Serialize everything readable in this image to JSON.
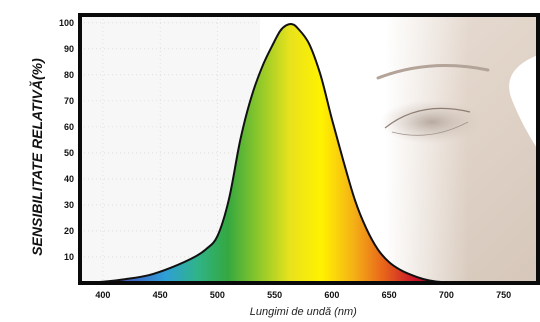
{
  "chart_data": {
    "type": "area",
    "title": "",
    "xlabel": "Lungimi de undă (nm)",
    "ylabel": "SENSIBILITATE RELATIVĂ(%)",
    "xlim": [
      380,
      780
    ],
    "ylim": [
      0,
      103
    ],
    "xticks": [
      400,
      450,
      500,
      550,
      600,
      650,
      700,
      750
    ],
    "yticks": [
      10,
      20,
      30,
      40,
      50,
      60,
      70,
      80,
      90,
      100
    ],
    "grid": false,
    "legend": "none",
    "fill": "visible spectrum gradient",
    "decoration": "human eye photo on the right side of the plot background",
    "series": [
      {
        "x": [
          380,
          400,
          420,
          440,
          460,
          480,
          490,
          500,
          510,
          520,
          530,
          540,
          550,
          555,
          560,
          565,
          570,
          580,
          590,
          600,
          610,
          620,
          630,
          640,
          650,
          660,
          670,
          680,
          690,
          700
        ],
        "values": [
          0,
          0.5,
          1.5,
          3,
          6,
          10,
          13,
          18,
          32,
          55,
          72,
          84,
          93,
          97,
          99,
          99.5,
          98,
          92,
          80,
          63,
          47,
          32,
          21,
          13,
          8,
          5,
          3,
          1.5,
          0.6,
          0.2
        ]
      }
    ]
  },
  "colors": {
    "frame": "#0a0a0a",
    "curve": "#111111",
    "spectrum": [
      "#7b4fa8",
      "#3b6bc9",
      "#2f9fd6",
      "#2fb38a",
      "#34a83f",
      "#8fc82a",
      "#e8e21c",
      "#fff200",
      "#f5b316",
      "#e8641b",
      "#c8142a",
      "#7a0f14"
    ]
  }
}
